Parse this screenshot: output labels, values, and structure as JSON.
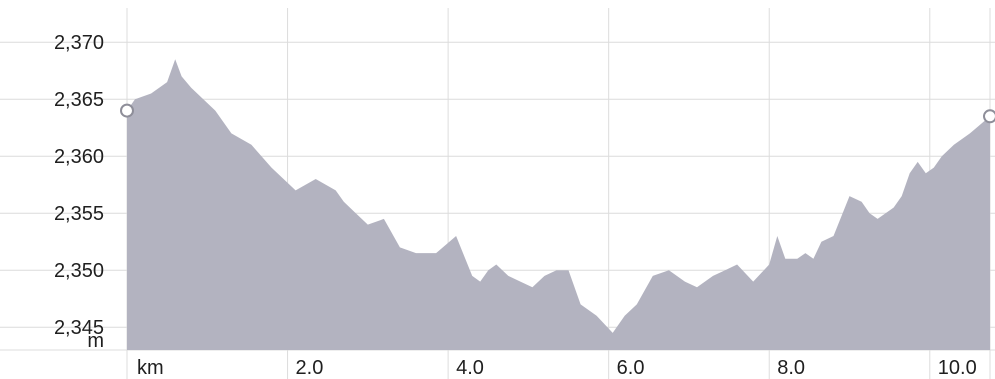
{
  "chart_data": {
    "type": "area",
    "title": "",
    "xlabel": "",
    "ylabel": "",
    "y_unit": "m",
    "x_unit": "km",
    "xlim": [
      0.0,
      10.75
    ],
    "ylim": [
      2343.0,
      2373.0
    ],
    "y_ticks": [
      2345,
      2350,
      2355,
      2360,
      2365,
      2370
    ],
    "y_tick_labels": [
      "2,345",
      "2,350",
      "2,355",
      "2,360",
      "2,365",
      "2,370"
    ],
    "x_ticks": [
      2.0,
      4.0,
      6.0,
      8.0,
      10.0
    ],
    "x_tick_labels": [
      "2.0",
      "4.0",
      "6.0",
      "8.0",
      "10.0"
    ],
    "grid": true,
    "fill_color": "#b3b3c0",
    "grid_color": "#dcdcdc",
    "endpoint_markers": true,
    "series": [
      {
        "x": [
          0.0,
          0.1,
          0.3,
          0.5,
          0.6,
          0.68,
          0.8,
          0.95,
          1.1,
          1.3,
          1.55,
          1.8,
          2.1,
          2.35,
          2.6,
          2.7,
          2.85,
          3.0,
          3.2,
          3.4,
          3.6,
          3.85,
          4.1,
          4.3,
          4.4,
          4.5,
          4.6,
          4.75,
          4.9,
          5.05,
          5.2,
          5.35,
          5.5,
          5.65,
          5.85,
          6.05,
          6.2,
          6.35,
          6.55,
          6.75,
          6.95,
          7.1,
          7.3,
          7.45,
          7.6,
          7.8,
          8.0,
          8.1,
          8.2,
          8.35,
          8.45,
          8.55,
          8.65,
          8.8,
          9.0,
          9.15,
          9.25,
          9.35,
          9.55,
          9.65,
          9.75,
          9.85,
          9.95,
          10.05,
          10.15,
          10.3,
          10.5,
          10.75
        ],
        "y": [
          2364.0,
          2365.0,
          2365.5,
          2366.5,
          2368.5,
          2367.0,
          2366.0,
          2365.0,
          2364.0,
          2362.0,
          2361.0,
          2359.0,
          2357.0,
          2358.0,
          2357.0,
          2356.0,
          2355.0,
          2354.0,
          2354.5,
          2352.0,
          2351.5,
          2351.5,
          2353.0,
          2349.5,
          2349.0,
          2350.0,
          2350.5,
          2349.5,
          2349.0,
          2348.5,
          2349.5,
          2350.0,
          2350.0,
          2347.0,
          2346.0,
          2344.5,
          2346.0,
          2347.0,
          2349.5,
          2350.0,
          2349.0,
          2348.5,
          2349.5,
          2350.0,
          2350.5,
          2349.0,
          2350.5,
          2353.0,
          2351.0,
          2351.0,
          2351.5,
          2351.0,
          2352.5,
          2353.0,
          2356.5,
          2356.0,
          2355.0,
          2354.5,
          2355.5,
          2356.5,
          2358.5,
          2359.5,
          2358.5,
          2359.0,
          2360.0,
          2361.0,
          2362.0,
          2363.5
        ]
      }
    ]
  }
}
